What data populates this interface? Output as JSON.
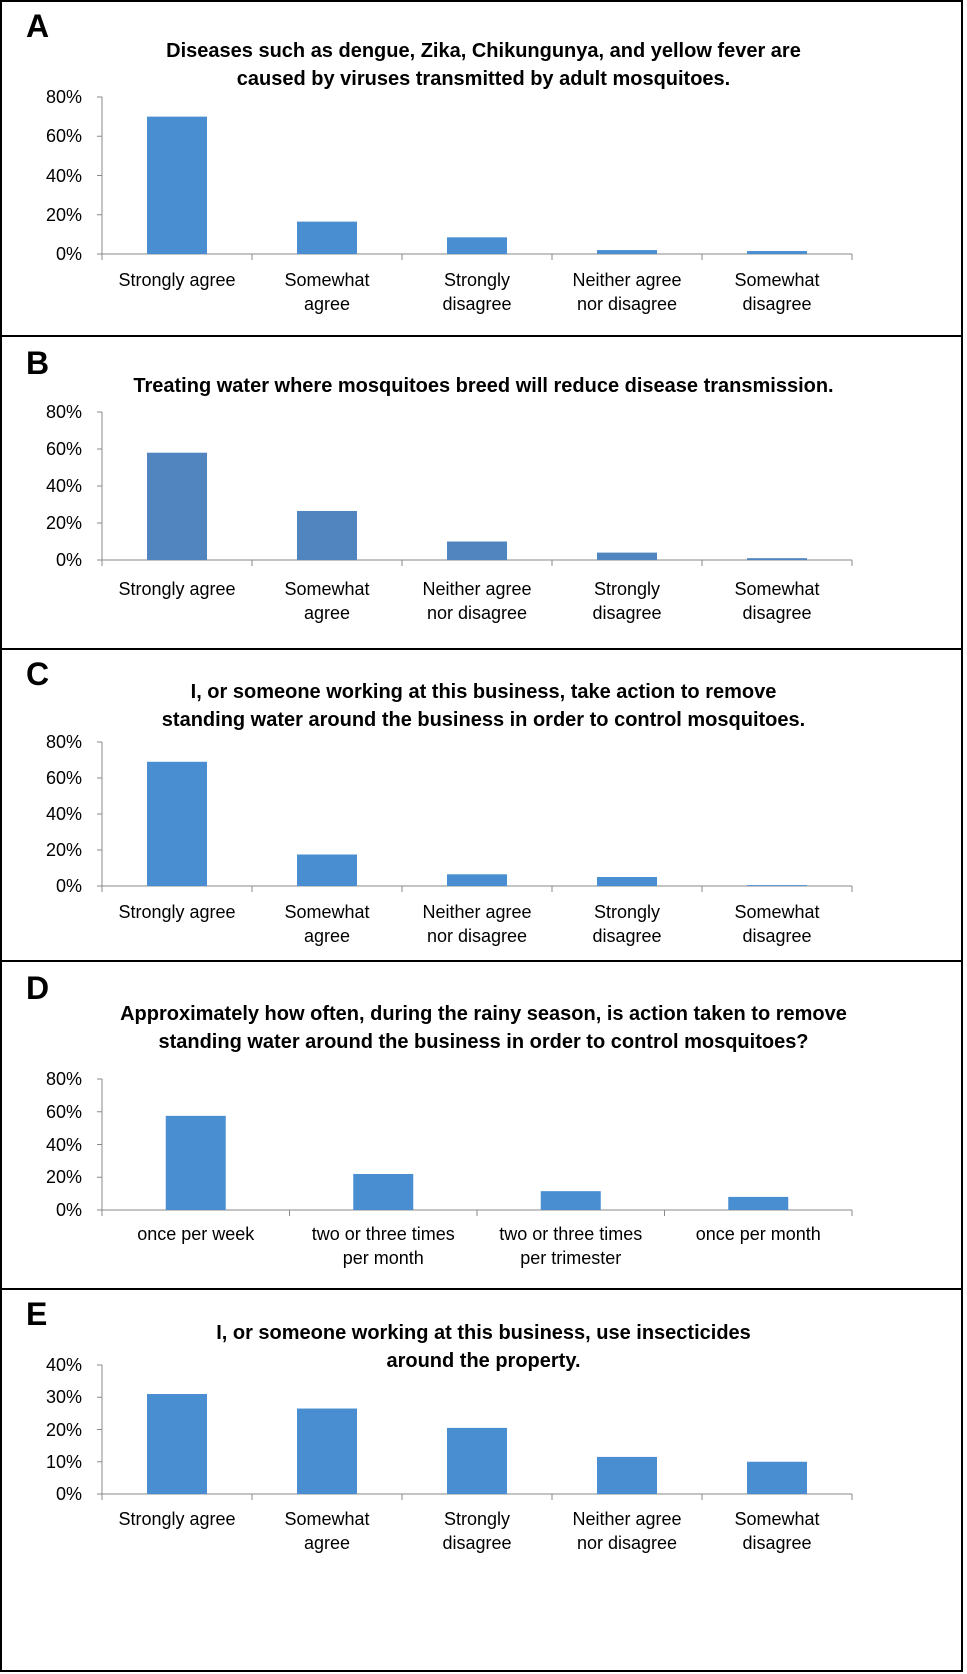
{
  "chart_data": [
    {
      "type": "bar",
      "label": "A",
      "title": "Diseases such as dengue, Zika, Chikungunya, and yellow fever are\ncaused by viruses transmitted by adult mosquitoes.",
      "categories": [
        "Strongly agree",
        "Somewhat\nagree",
        "Strongly\ndisagree",
        "Neither agree\nnor disagree",
        "Somewhat\ndisagree"
      ],
      "values": [
        70,
        16.5,
        8.5,
        2,
        1.5
      ],
      "color": "#4a8ed2",
      "ylim": [
        0,
        80
      ],
      "yticks": [
        {
          "value": 0,
          "label": "0%"
        },
        {
          "value": 20,
          "label": "20%"
        },
        {
          "value": 40,
          "label": "40%"
        },
        {
          "value": 60,
          "label": "60%"
        },
        {
          "value": 80,
          "label": "80%"
        }
      ]
    },
    {
      "type": "bar",
      "label": "B",
      "title": "Treating water where mosquitoes breed will reduce disease transmission.",
      "categories": [
        "Strongly agree",
        "Somewhat\nagree",
        "Neither agree\nnor disagree",
        "Strongly\ndisagree",
        "Somewhat\ndisagree"
      ],
      "values": [
        58,
        26.5,
        10,
        4,
        1
      ],
      "color": "#5085bf",
      "ylim": [
        0,
        80
      ],
      "yticks": [
        {
          "value": 0,
          "label": "0%"
        },
        {
          "value": 20,
          "label": "20%"
        },
        {
          "value": 40,
          "label": "40%"
        },
        {
          "value": 60,
          "label": "60%"
        },
        {
          "value": 80,
          "label": "80%"
        }
      ]
    },
    {
      "type": "bar",
      "label": "C",
      "title": "I, or someone working at this business, take action to remove\nstanding water around the business in order to control mosquitoes.",
      "categories": [
        "Strongly agree",
        "Somewhat\nagree",
        "Neither agree\nnor disagree",
        "Strongly\ndisagree",
        "Somewhat\ndisagree"
      ],
      "values": [
        69,
        17.5,
        6.5,
        5,
        0.5
      ],
      "color": "#4a8ed2",
      "ylim": [
        0,
        80
      ],
      "yticks": [
        {
          "value": 0,
          "label": "0%"
        },
        {
          "value": 20,
          "label": "20%"
        },
        {
          "value": 40,
          "label": "40%"
        },
        {
          "value": 60,
          "label": "60%"
        },
        {
          "value": 80,
          "label": "80%"
        }
      ]
    },
    {
      "type": "bar",
      "label": "D",
      "title": "Approximately how often, during the rainy season, is action taken to remove\nstanding water around the business in order to control mosquitoes?",
      "categories": [
        "once per week",
        "two or three times\nper month",
        "two or three times\nper trimester",
        "once per month"
      ],
      "values": [
        57.5,
        22,
        11.5,
        8
      ],
      "color": "#4a8ed2",
      "ylim": [
        0,
        80
      ],
      "yticks": [
        {
          "value": 0,
          "label": "0%"
        },
        {
          "value": 20,
          "label": "20%"
        },
        {
          "value": 40,
          "label": "40%"
        },
        {
          "value": 60,
          "label": "60%"
        },
        {
          "value": 80,
          "label": "80%"
        }
      ]
    },
    {
      "type": "bar",
      "label": "E",
      "title": "I, or someone working at this business, use insecticides\naround the property.",
      "categories": [
        "Strongly agree",
        "Somewhat\nagree",
        "Strongly\ndisagree",
        "Neither agree\nnor disagree",
        "Somewhat\ndisagree"
      ],
      "values": [
        31,
        26.5,
        20.5,
        11.5,
        10
      ],
      "color": "#4a8ed2",
      "ylim": [
        0,
        40
      ],
      "yticks": [
        {
          "value": 0,
          "label": "0%"
        },
        {
          "value": 10,
          "label": "10%"
        },
        {
          "value": 20,
          "label": "20%"
        },
        {
          "value": 30,
          "label": "30%"
        },
        {
          "value": 40,
          "label": "40%"
        }
      ]
    }
  ]
}
